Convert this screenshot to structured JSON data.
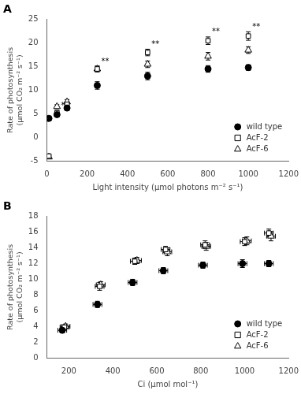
{
  "chart_data": [
    {
      "type": "scatter",
      "title": "A",
      "xlabel": "Light intensity (µmol photons m⁻² s⁻¹)",
      "ylabel": "Rate of photosynthesis\n(µmol CO₂ m⁻² s⁻¹)",
      "xlim": [
        0,
        1200
      ],
      "ylim": [
        -5,
        25
      ],
      "xticks": [
        0,
        200,
        400,
        600,
        800,
        1000,
        1200
      ],
      "yticks": [
        -5,
        0,
        5,
        10,
        15,
        20,
        25
      ],
      "grid": false,
      "legend": "lower right",
      "series": [
        {
          "name": "wild type",
          "color": "#000000",
          "marker": "circle",
          "x": [
            10,
            50,
            100,
            250,
            500,
            800,
            1000
          ],
          "values": [
            4.0,
            4.8,
            6.2,
            11.0,
            13.0,
            14.5,
            14.8
          ],
          "yerr": [
            0.3,
            0.4,
            0.5,
            0.8,
            0.8,
            0.7,
            0.6
          ]
        },
        {
          "name": "AcF-2",
          "color": "#000000",
          "marker": "square_open",
          "x": [
            10,
            50,
            100,
            250,
            500,
            800,
            1000
          ],
          "values": [
            -4.0,
            5.2,
            7.0,
            14.5,
            18.0,
            20.5,
            21.5
          ],
          "yerr": [
            0.3,
            0.5,
            0.5,
            0.6,
            0.7,
            0.8,
            0.9
          ],
          "labels": [
            null,
            "*",
            null,
            "**",
            "**",
            "**",
            "**"
          ]
        },
        {
          "name": "AcF-6",
          "color": "#000000",
          "marker": "triangle_open",
          "x": [
            10,
            50,
            100,
            250,
            500,
            800,
            1000
          ],
          "values": [
            -4.2,
            6.5,
            7.5,
            14.5,
            15.5,
            17.2,
            18.5
          ],
          "yerr": [
            0.3,
            0.4,
            0.5,
            0.6,
            0.7,
            0.8,
            0.7
          ]
        }
      ]
    },
    {
      "type": "scatter",
      "title": "B",
      "xlabel": "Ci (µmol mol⁻¹)",
      "ylabel": "Rate of photosynthesis\n(µmol CO₂ m⁻² s⁻¹)",
      "xlim": [
        100,
        1200
      ],
      "ylim": [
        0,
        18
      ],
      "xticks": [
        200,
        400,
        600,
        800,
        1000,
        1200
      ],
      "yticks": [
        0,
        2,
        4,
        6,
        8,
        10,
        12,
        14,
        16,
        18
      ],
      "grid": false,
      "legend": "lower right",
      "series": [
        {
          "name": "wild type",
          "color": "#000000",
          "marker": "circle",
          "x": [
            170,
            330,
            490,
            630,
            810,
            990,
            1110
          ],
          "values": [
            3.5,
            6.8,
            9.6,
            11.1,
            11.8,
            12.0,
            12.0
          ],
          "xerr": [
            20,
            20,
            20,
            20,
            20,
            20,
            20
          ],
          "yerr": [
            0.3,
            0.4,
            0.4,
            0.4,
            0.4,
            0.5,
            0.4
          ]
        },
        {
          "name": "AcF-2",
          "color": "#000000",
          "marker": "square_open",
          "x": [
            180,
            340,
            500,
            640,
            820,
            1000,
            1110
          ],
          "values": [
            3.9,
            9.1,
            12.3,
            13.8,
            14.4,
            14.8,
            15.9
          ],
          "xerr": [
            20,
            20,
            20,
            20,
            20,
            20,
            20
          ],
          "yerr": [
            0.3,
            0.5,
            0.4,
            0.4,
            0.5,
            0.5,
            0.5
          ]
        },
        {
          "name": "AcF-6",
          "color": "#000000",
          "marker": "triangle_open",
          "x": [
            185,
            345,
            510,
            648,
            825,
            1010,
            1120
          ],
          "values": [
            4.0,
            9.3,
            12.4,
            13.5,
            14.2,
            14.9,
            15.5
          ],
          "xerr": [
            20,
            20,
            20,
            20,
            20,
            20,
            20
          ],
          "yerr": [
            0.3,
            0.4,
            0.4,
            0.5,
            0.5,
            0.5,
            0.6
          ]
        }
      ]
    }
  ]
}
